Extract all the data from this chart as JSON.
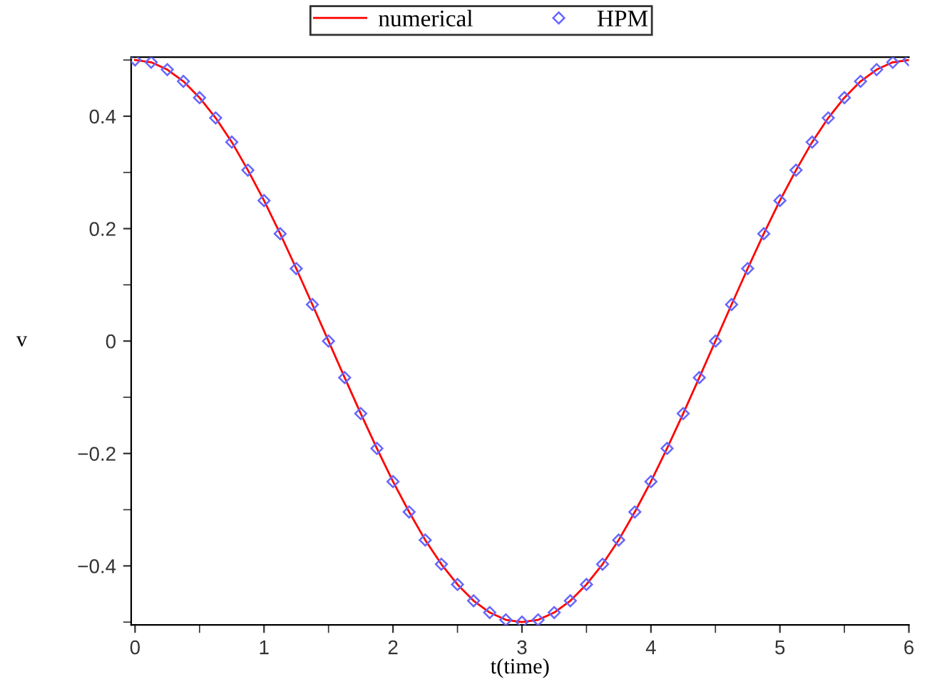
{
  "chart_data": {
    "type": "line",
    "xlabel": "t(time)",
    "ylabel": "v",
    "x": [
      0,
      0.125,
      0.25,
      0.375,
      0.5,
      0.625,
      0.75,
      0.875,
      1,
      1.125,
      1.25,
      1.375,
      1.5,
      1.625,
      1.75,
      1.875,
      2,
      2.125,
      2.25,
      2.375,
      2.5,
      2.625,
      2.75,
      2.875,
      3,
      3.125,
      3.25,
      3.375,
      3.5,
      3.625,
      3.75,
      3.875,
      4,
      4.125,
      4.25,
      4.375,
      4.5,
      4.625,
      4.75,
      4.875,
      5,
      5.125,
      5.25,
      5.375,
      5.5,
      5.625,
      5.75,
      5.875,
      6
    ],
    "series": [
      {
        "name": "numerical",
        "color": "#ff0000",
        "marker": "none",
        "line_style": "solid",
        "values": [
          0.5,
          0.496,
          0.483,
          0.462,
          0.433,
          0.397,
          0.354,
          0.304,
          0.25,
          0.191,
          0.129,
          0.065,
          0,
          -0.065,
          -0.129,
          -0.191,
          -0.25,
          -0.304,
          -0.354,
          -0.397,
          -0.433,
          -0.462,
          -0.483,
          -0.496,
          -0.5,
          -0.496,
          -0.483,
          -0.462,
          -0.433,
          -0.397,
          -0.354,
          -0.304,
          -0.25,
          -0.191,
          -0.129,
          -0.065,
          0,
          0.065,
          0.129,
          0.191,
          0.25,
          0.304,
          0.354,
          0.397,
          0.433,
          0.462,
          0.483,
          0.496,
          0.5
        ]
      },
      {
        "name": "HPM",
        "type": "scatter",
        "color": "#6666ff",
        "marker": "diamond",
        "values": [
          0.5,
          0.496,
          0.483,
          0.462,
          0.433,
          0.397,
          0.354,
          0.304,
          0.25,
          0.191,
          0.129,
          0.065,
          0,
          -0.065,
          -0.129,
          -0.191,
          -0.25,
          -0.304,
          -0.354,
          -0.397,
          -0.433,
          -0.462,
          -0.483,
          -0.496,
          -0.5,
          -0.496,
          -0.483,
          -0.462,
          -0.433,
          -0.397,
          -0.354,
          -0.304,
          -0.25,
          -0.191,
          -0.129,
          -0.065,
          0,
          0.065,
          0.129,
          0.191,
          0.25,
          0.304,
          0.354,
          0.397,
          0.433,
          0.462,
          0.483,
          0.496,
          0.5
        ]
      }
    ],
    "xlim": [
      -0.03,
      6.0
    ],
    "ylim": [
      -0.505,
      0.505
    ],
    "xticks": [
      0,
      {
        "value": 0.5,
        "label": null
      },
      1,
      {
        "value": 1.5,
        "label": null
      },
      2,
      {
        "value": 2.5,
        "label": null
      },
      3,
      {
        "value": 3.5,
        "label": null
      },
      4,
      {
        "value": 4.5,
        "label": null
      },
      5,
      {
        "value": 5.5,
        "label": null
      },
      6
    ],
    "yticks": [
      {
        "value": -0.5,
        "label": null
      },
      {
        "value": -0.4,
        "label": "−0.4"
      },
      {
        "value": -0.3,
        "label": null
      },
      {
        "value": -0.2,
        "label": "−0.2"
      },
      {
        "value": -0.1,
        "label": null
      },
      0,
      {
        "value": 0.1,
        "label": null
      },
      0.2,
      {
        "value": 0.3,
        "label": null
      },
      0.4,
      {
        "value": 0.5,
        "label": null
      }
    ],
    "grid": false,
    "legend": "top"
  }
}
